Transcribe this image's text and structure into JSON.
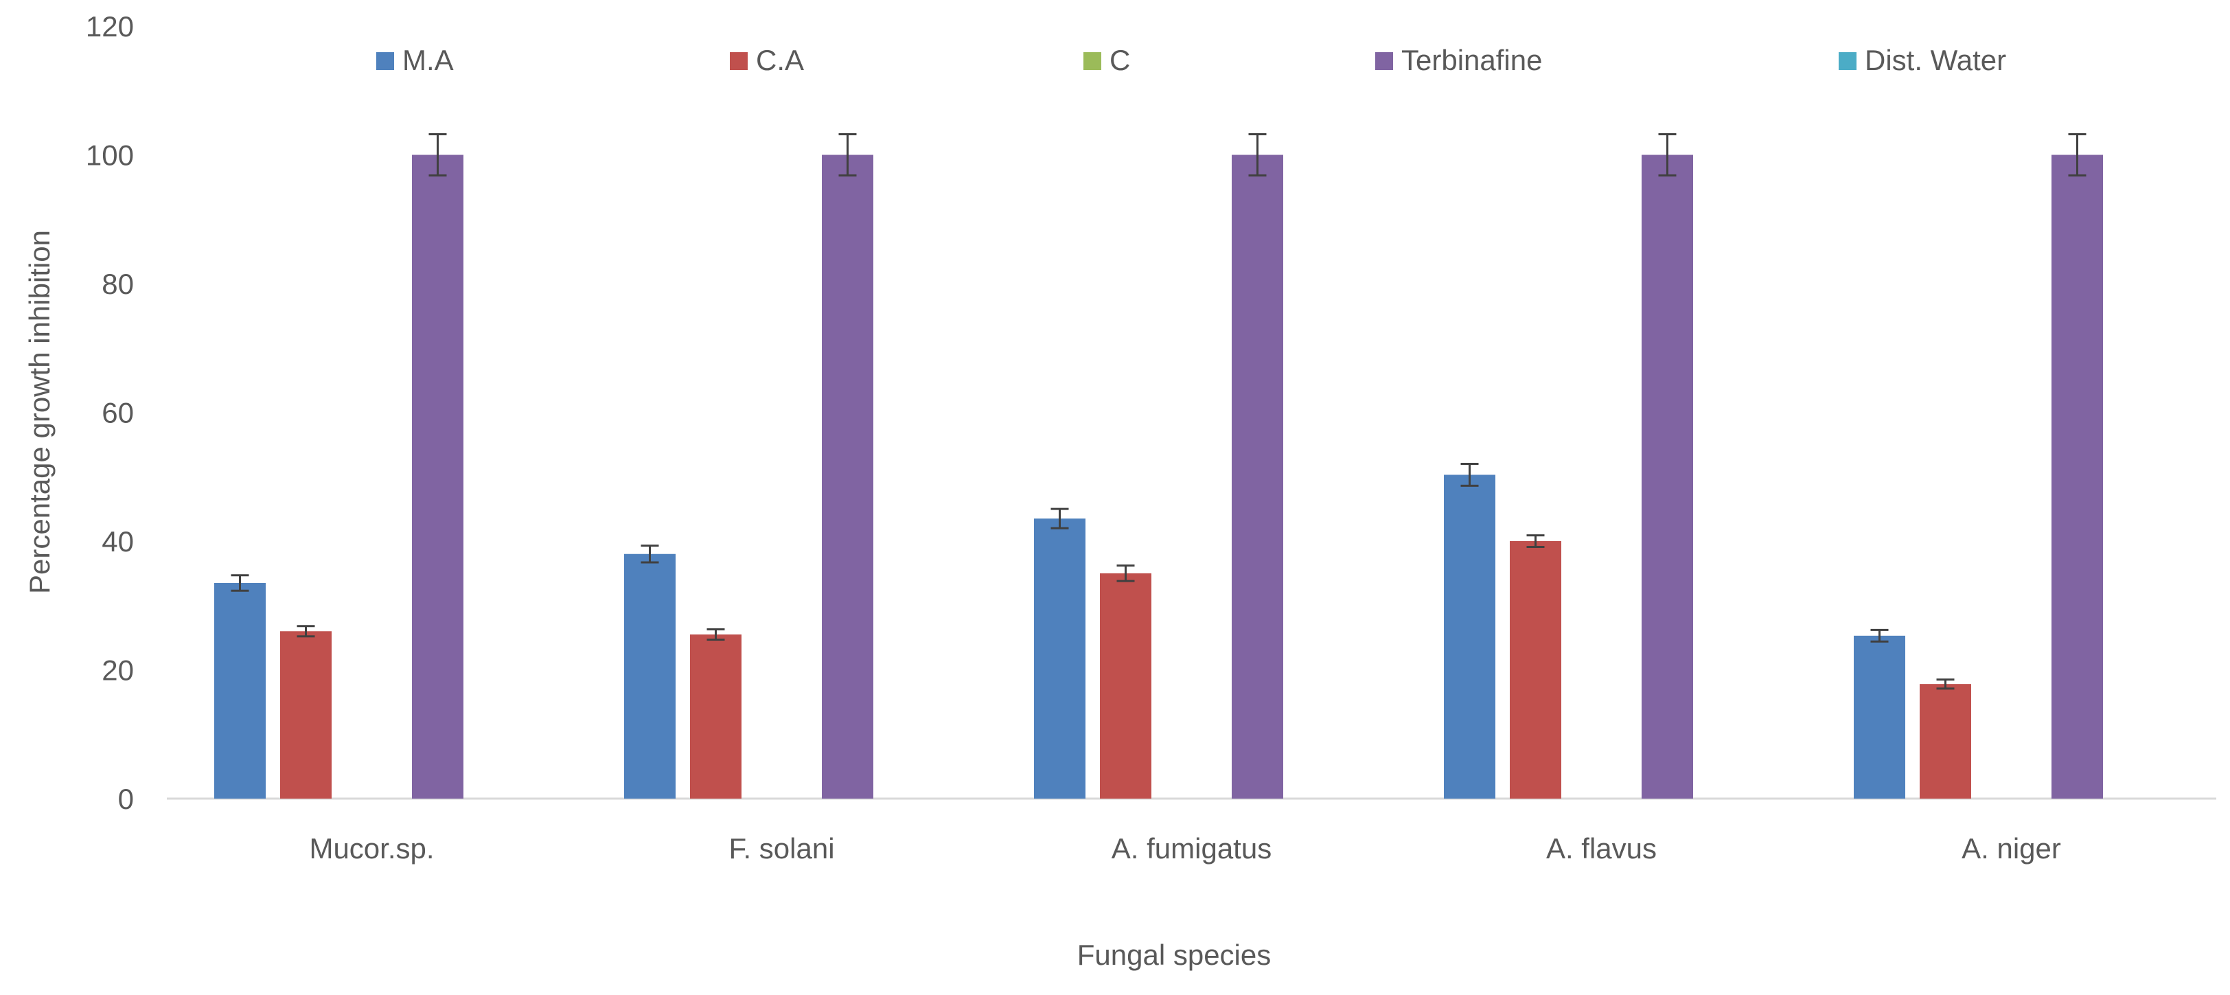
{
  "chart_data": {
    "type": "bar",
    "title": "",
    "xlabel": "Fungal species",
    "ylabel": "Percentage growth inhibition",
    "ylim": [
      0,
      120
    ],
    "yticks": [
      0,
      20,
      40,
      60,
      80,
      100,
      120
    ],
    "grid": false,
    "legend_position": "top",
    "categories": [
      "Mucor.sp.",
      "F. solani",
      "A. fumigatus",
      "A. flavus",
      "A. niger"
    ],
    "series": [
      {
        "name": "M.A",
        "color": "#4f81bd",
        "values": [
          33.5,
          38,
          43.5,
          50.3,
          25.3
        ],
        "errors": [
          1.2,
          1.3,
          1.5,
          1.7,
          0.9
        ]
      },
      {
        "name": "C.A",
        "color": "#c0504d",
        "values": [
          26,
          25.5,
          35,
          40,
          17.8
        ],
        "errors": [
          0.8,
          0.8,
          1.2,
          0.9,
          0.7
        ]
      },
      {
        "name": "C",
        "color": "#9bbb59",
        "values": [
          0,
          0,
          0,
          0,
          0
        ],
        "errors": [
          0,
          0,
          0,
          0,
          0
        ]
      },
      {
        "name": "Terbinafine",
        "color": "#8064a2",
        "values": [
          100,
          100,
          100,
          100,
          100
        ],
        "errors": [
          3.2,
          3.2,
          3.2,
          3.2,
          3.2
        ]
      },
      {
        "name": "Dist. Water",
        "color": "#4bacc6",
        "values": [
          0,
          0,
          0,
          0,
          0
        ],
        "errors": [
          0,
          0,
          0,
          0,
          0
        ]
      }
    ]
  }
}
